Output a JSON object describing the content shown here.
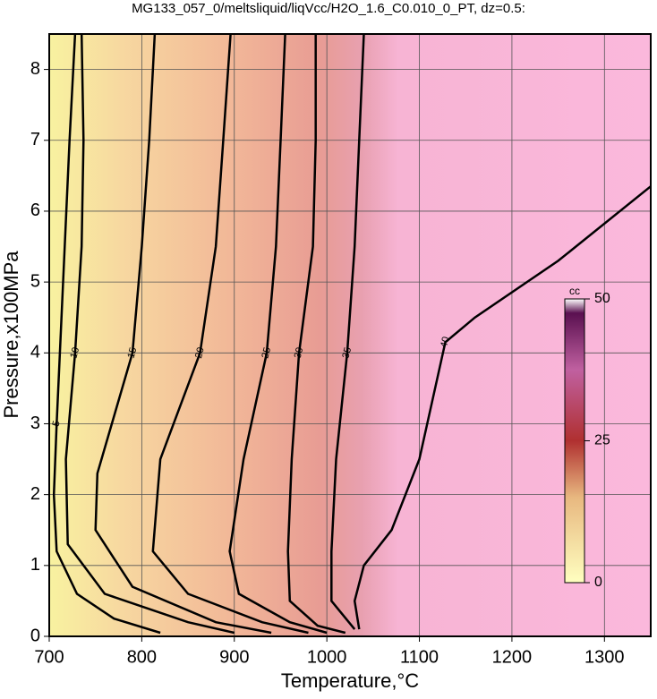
{
  "chart_data": {
    "type": "contour",
    "title": "MG133_057_0/meltsliquid/liqVcc/H2O_1.6_C0.010_0_PT, dz=0.5:",
    "xlabel": "Temperature,°C",
    "ylabel": "Pressure,x100MPa",
    "xlim": [
      700,
      1350
    ],
    "ylim": [
      0,
      8.5
    ],
    "xticks": [
      700,
      800,
      900,
      1000,
      1100,
      1200,
      1300
    ],
    "yticks": [
      0,
      1,
      2,
      3,
      4,
      5,
      6,
      7,
      8
    ],
    "grid": true,
    "line_color": "#000000",
    "contours": [
      {
        "level": 5,
        "x": [
          728,
          722,
          715,
          708,
          705,
          708,
          730,
          770,
          820
        ],
        "y": [
          8.5,
          7,
          5,
          3,
          2,
          1.2,
          0.6,
          0.25,
          0.05
        ]
      },
      {
        "level": 10,
        "x": [
          735,
          737,
          735,
          728,
          718,
          720,
          760,
          850,
          900
        ],
        "y": [
          8.5,
          7,
          5.5,
          4,
          2.5,
          1.3,
          0.6,
          0.2,
          0.05
        ]
      },
      {
        "level": 15,
        "x": [
          814,
          808,
          800,
          790,
          752,
          750,
          790,
          880,
          940
        ],
        "y": [
          8.5,
          7,
          5.5,
          4,
          2.3,
          1.5,
          0.7,
          0.2,
          0.05
        ]
      },
      {
        "level": 20,
        "x": [
          896,
          888,
          880,
          863,
          820,
          812,
          850,
          930,
          980
        ],
        "y": [
          8.5,
          7,
          5.5,
          4,
          2.5,
          1.2,
          0.6,
          0.2,
          0.05
        ]
      },
      {
        "level": 25,
        "x": [
          955,
          950,
          945,
          935,
          910,
          895,
          905,
          960,
          1000
        ],
        "y": [
          8.5,
          7,
          5.5,
          4,
          2.5,
          1.2,
          0.6,
          0.2,
          0.05
        ]
      },
      {
        "level": 30,
        "x": [
          988,
          988,
          985,
          970,
          962,
          958,
          960,
          990,
          1020
        ],
        "y": [
          8.5,
          7,
          5.5,
          4,
          2.5,
          1.2,
          0.5,
          0.15,
          0.05
        ]
      },
      {
        "level": 35,
        "x": [
          1040,
          1035,
          1030,
          1022,
          1010,
          1005,
          1005,
          1030
        ],
        "y": [
          8.5,
          7,
          5.5,
          4,
          2.5,
          1.2,
          0.5,
          0.1
        ]
      },
      {
        "level": 40,
        "x": [
          1350,
          1250,
          1160,
          1128,
          1100,
          1070,
          1040,
          1030,
          1035
        ],
        "y": [
          6.35,
          5.3,
          4.5,
          4.15,
          2.5,
          1.5,
          1,
          0.5,
          0.1
        ]
      }
    ],
    "colorbar": {
      "label": "cc",
      "lim": [
        0,
        50
      ],
      "ticks": [
        0,
        25,
        50
      ]
    }
  }
}
